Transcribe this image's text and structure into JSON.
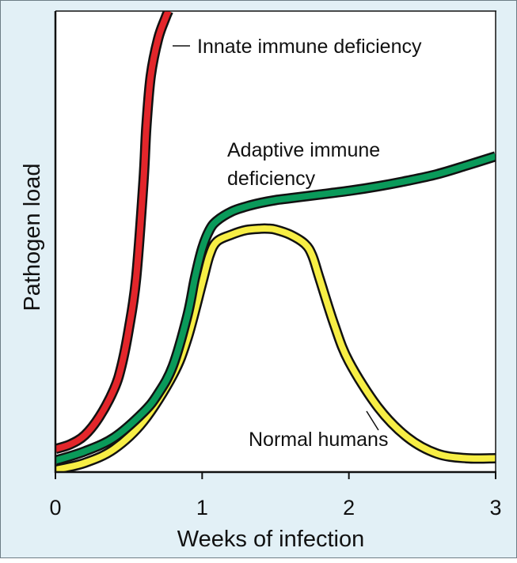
{
  "chart_data": {
    "type": "line",
    "xlabel": "Weeks of infection",
    "ylabel": "Pathogen load",
    "xlim": [
      0,
      3
    ],
    "ylim": [
      0,
      100
    ],
    "x_ticks": [
      0,
      1,
      2,
      3
    ],
    "x_tick_labels": [
      "0",
      "1",
      "2",
      "3"
    ],
    "y_ticks_shown": false,
    "grid": false,
    "legend": "none (series labelled directly on the curves)",
    "colors": {
      "plot_background": "#ffffff",
      "frame_background": "#e2f0f6",
      "axis": "#111111",
      "curve_outline": "#111111"
    },
    "series": [
      {
        "label": "Innate immune deficiency",
        "color": "#e3262b",
        "x": [
          0.0,
          0.1,
          0.2,
          0.3,
          0.4,
          0.45,
          0.5,
          0.55,
          0.6,
          0.62,
          0.65,
          0.7,
          0.75,
          0.77
        ],
        "y": [
          5,
          6,
          8,
          12,
          18,
          23,
          31,
          42,
          63,
          75,
          86,
          94,
          98.5,
          100
        ]
      },
      {
        "label": "Adaptive immune deficiency",
        "color": "#0a9a5a",
        "x": [
          0.0,
          0.2,
          0.4,
          0.6,
          0.7,
          0.8,
          0.9,
          0.95,
          1.0,
          1.05,
          1.1,
          1.2,
          1.3,
          1.4,
          1.5,
          1.6,
          1.8,
          2.0,
          2.2,
          2.4,
          2.6,
          2.8,
          3.0
        ],
        "y": [
          2.5,
          4.5,
          7.5,
          13,
          17,
          23,
          34,
          42,
          48.5,
          52.5,
          54.5,
          56.5,
          57.6,
          58.4,
          59,
          59.4,
          60.2,
          61,
          62,
          63.2,
          64.6,
          66.5,
          68.5
        ]
      },
      {
        "label": "Normal humans",
        "color": "#f7ee45",
        "x": [
          0.0,
          0.2,
          0.4,
          0.6,
          0.8,
          0.9,
          1.0,
          1.05,
          1.1,
          1.2,
          1.3,
          1.4,
          1.45,
          1.5,
          1.6,
          1.7,
          1.75,
          1.8,
          1.9,
          2.0,
          2.2,
          2.4,
          2.6,
          2.8,
          3.0
        ],
        "y": [
          0.5,
          2,
          5,
          11,
          21,
          29,
          41,
          47,
          50,
          51.5,
          52.5,
          52.8,
          52.8,
          52.6,
          51.5,
          49.5,
          47,
          42,
          32,
          24,
          14,
          7.5,
          4,
          3,
          3
        ]
      }
    ],
    "annotations": [
      {
        "text": "Innate immune deficiency",
        "series": 0
      },
      {
        "lines": [
          "Adaptive immune",
          "deficiency"
        ],
        "series": 1
      },
      {
        "text": "Normal humans",
        "series": 2
      }
    ]
  }
}
